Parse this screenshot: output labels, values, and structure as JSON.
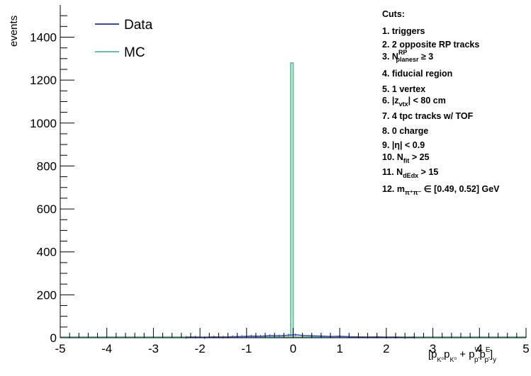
{
  "chart_data": {
    "type": "histogram",
    "xlabel": "[p_{K⁰}p_{K⁰} + p_{p'}^{W}p_{p'}^{E}]_{y}",
    "xlabel_parts": {
      "open": "[p",
      "k0_sub1": "K⁰",
      "p2": "p",
      "k0_sub2": "K⁰",
      "plus": " + p",
      "w_sup": "W",
      "pprime_sub1": "p'",
      "p3": "p",
      "e_sup": "E",
      "pprime_sub2": "p'",
      "close": "]",
      "y_sub": "y"
    },
    "ylabel": "events",
    "xlim": [
      -5,
      5
    ],
    "ylim": [
      0,
      1550
    ],
    "x_ticks": [
      -5,
      -4,
      -3,
      -2,
      -1,
      0,
      1,
      2,
      3,
      4,
      5
    ],
    "y_ticks": [
      0,
      200,
      400,
      600,
      800,
      1000,
      1200,
      1400
    ],
    "legend": {
      "placement": "top-left",
      "entries": [
        "Data",
        "MC"
      ]
    },
    "series": [
      {
        "name": "Data",
        "color": "#3b45c8",
        "points": [
          [
            -2.3,
            2
          ],
          [
            -2.1,
            3
          ],
          [
            -1.9,
            1
          ],
          [
            -1.7,
            4
          ],
          [
            -1.5,
            3
          ],
          [
            -1.3,
            5
          ],
          [
            -1.1,
            6
          ],
          [
            -0.9,
            8
          ],
          [
            -0.7,
            7
          ],
          [
            -0.5,
            10
          ],
          [
            -0.3,
            9
          ],
          [
            -0.1,
            12
          ],
          [
            0.05,
            14
          ],
          [
            0.2,
            11
          ],
          [
            0.4,
            9
          ],
          [
            0.6,
            8
          ],
          [
            0.8,
            6
          ],
          [
            1.0,
            7
          ],
          [
            1.2,
            5
          ],
          [
            1.4,
            4
          ],
          [
            1.6,
            3
          ],
          [
            1.8,
            4
          ],
          [
            2.0,
            2
          ],
          [
            2.2,
            3
          ],
          [
            2.4,
            1
          ],
          [
            2.6,
            2
          ]
        ]
      },
      {
        "name": "MC",
        "color": "#66c29a",
        "bins": [
          {
            "x0": -0.05,
            "x1": 0.0,
            "y": 1280
          }
        ]
      }
    ],
    "cuts": {
      "title": "Cuts:",
      "items": [
        {
          "text": "1. triggers"
        },
        {
          "text": "2. 2 opposite RP tracks"
        },
        {
          "pre": "3. N",
          "sub": "planesr",
          "sup": "RP",
          "post": " ≥ 3"
        },
        {
          "text": "4. fiducial region"
        },
        {
          "text": "5. 1 vertex"
        },
        {
          "pre": "6. |z",
          "sub": "vtx",
          "post": "| < 80 cm"
        },
        {
          "text": "7. 4 tpc tracks w/ TOF"
        },
        {
          "text": "8. 0 charge"
        },
        {
          "text": "9. |η| < 0.9"
        },
        {
          "pre": "10. N",
          "sub": "fit",
          "post": " > 25"
        },
        {
          "pre": "11. N",
          "sub": "dEdx",
          "post": " > 15"
        },
        {
          "pre": "12. m",
          "sub": "π⁺π⁻",
          "post": " ∈ [0.49, 0.52] GeV"
        }
      ]
    }
  }
}
